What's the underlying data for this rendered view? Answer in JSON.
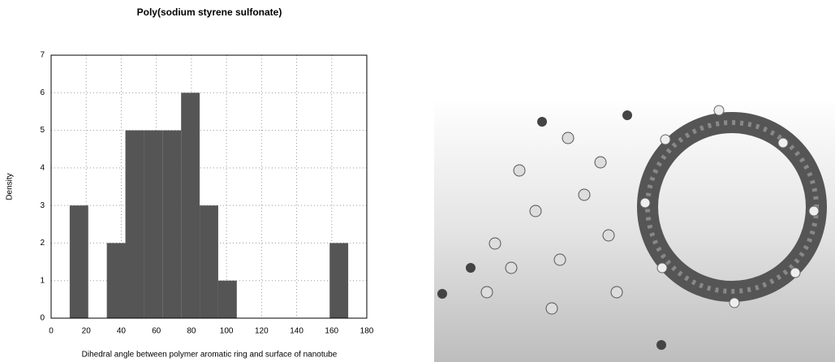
{
  "chart_data": {
    "type": "histogram",
    "title": "Poly(sodium styrene sulfonate)",
    "x_label": "Dihedral angle between polymer aromatic ring and surface of nanotube",
    "y_label": "Density",
    "bins": [
      0,
      10.59,
      21.18,
      31.76,
      42.35,
      52.94,
      63.53,
      74.12,
      84.71,
      95.29,
      105.88,
      116.47,
      127.06,
      137.65,
      148.24,
      158.82,
      169.41,
      180
    ],
    "counts": [
      0,
      3,
      0,
      2,
      5,
      5,
      5,
      6,
      3,
      1,
      0,
      0,
      0,
      0,
      0,
      2,
      0
    ],
    "color": "#555555",
    "xlim": [
      0,
      180
    ],
    "xticks": [
      0,
      20,
      40,
      60,
      80,
      100,
      120,
      140,
      160,
      180
    ],
    "ylim": [
      0,
      7
    ],
    "yticks": [
      0,
      1,
      2,
      3,
      4,
      5,
      6,
      7
    ],
    "grid": true
  }
}
